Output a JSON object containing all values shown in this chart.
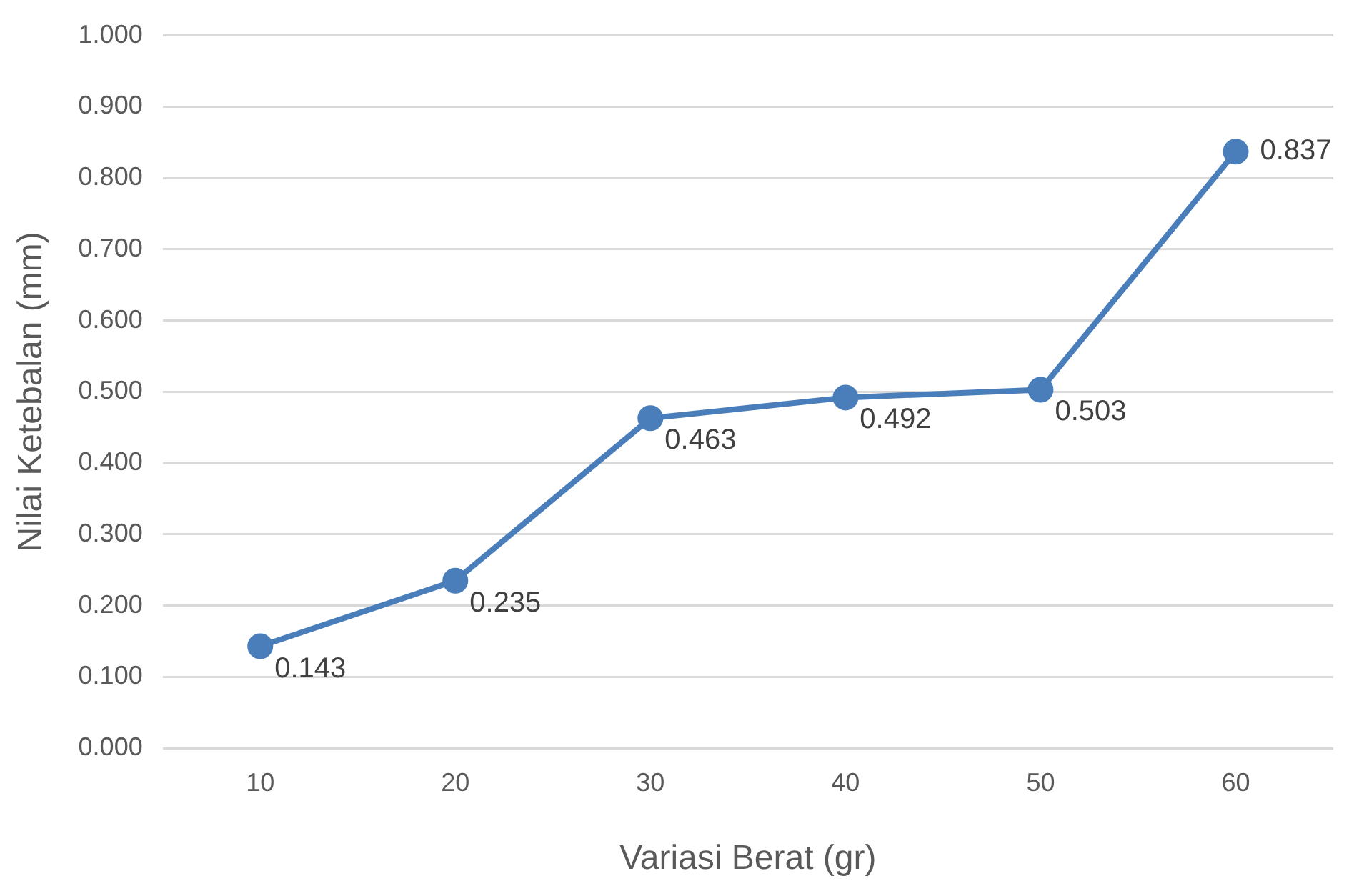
{
  "chart_data": {
    "type": "line",
    "xlabel": "Variasi Berat (gr)",
    "ylabel": "Nilai Ketebalan (mm)",
    "categories": [
      "10",
      "20",
      "30",
      "40",
      "50",
      "60"
    ],
    "series": [
      {
        "color": "#4a7ebb",
        "values": [
          0.143,
          0.235,
          0.463,
          0.492,
          0.503,
          0.837
        ]
      }
    ],
    "ylim": [
      0,
      1
    ],
    "yticks": [
      {
        "value": 0,
        "label": "0.000"
      },
      {
        "value": 0.1,
        "label": "0.100"
      },
      {
        "value": 0.2,
        "label": "0.200"
      },
      {
        "value": 0.3,
        "label": "0.300"
      },
      {
        "value": 0.4,
        "label": "0.400"
      },
      {
        "value": 0.5,
        "label": "0.500"
      },
      {
        "value": 0.6,
        "label": "0.600"
      },
      {
        "value": 0.7,
        "label": "0.700"
      },
      {
        "value": 0.8,
        "label": "0.800"
      },
      {
        "value": 0.9,
        "label": "0.900"
      },
      {
        "value": 1,
        "label": "1.000"
      }
    ],
    "grid": "y",
    "marker": "circle",
    "data_labels": true,
    "legend": false
  }
}
